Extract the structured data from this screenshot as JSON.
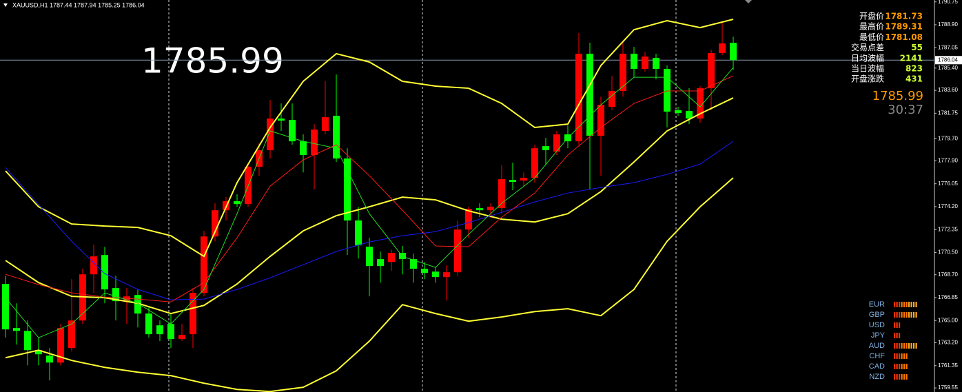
{
  "chart_data": {
    "type": "candlestick",
    "header": "XAUUSD,H1  1787.44 1787.94 1785.25 1786.04",
    "big_price": "1785.99",
    "up_color": "#ff0000",
    "down_color": "#00ff00",
    "xlim": [
      -0.5,
      84.25
    ],
    "ylim": [
      1759.22,
      1790.9
    ],
    "yticks": [
      1790.75,
      {
        "value": 1788.9,
        "label": "1788.90"
      },
      1787.05,
      {
        "value": 1785.4,
        "label": "1785.40"
      },
      {
        "value": 1783.6,
        "label": "1783.60"
      },
      1781.75,
      {
        "value": 1779.7,
        "label": "1779.70"
      },
      {
        "value": 1777.9,
        "label": "1777.90"
      },
      1776.05,
      {
        "value": 1774.2,
        "label": "1774.20"
      },
      1772.35,
      {
        "value": 1770.5,
        "label": "1770.50"
      },
      {
        "value": 1768.7,
        "label": "1768.70"
      },
      1766.85,
      {
        "value": 1765,
        "label": "1765.00"
      },
      {
        "value": 1763.2,
        "label": "1763.20"
      },
      1761.35,
      1759.55
    ],
    "current_price": 1786.04,
    "open": [
      1767.95,
      1764.39,
      1764.16,
      1762.6,
      1762.16,
      1761.6,
      1762.77,
      1765.0,
      1768.73,
      1770.29,
      1767.62,
      1766.56,
      1767.06,
      1765.56,
      1764.61,
      1764.72,
      1763.5,
      1763.89,
      1767.23,
      1771.79,
      1773.91,
      1774.64,
      1774.41,
      1777.42,
      1778.76,
      1781.32,
      1781.21,
      1779.48,
      1778.37,
      1780.32,
      1781.54,
      1778.09,
      1773.08,
      1770.96,
      1769.96,
      1769.73,
      1770.46,
      1769.96,
      1769.18,
      1768.95,
      1768.51,
      1768.9,
      1772.35,
      1774.08,
      1773.91,
      1774.08,
      1776.36,
      1776.31,
      1776.53,
      1779.09,
      1778.65,
      1780.04,
      1779.48,
      1786.56,
      1779.93,
      1782.27,
      1783.55,
      1786.56,
      1785.33,
      1786.22,
      1785.33,
      1781.99,
      1781.93,
      1781.32,
      1783.77,
      1786.61,
      1787.44
    ],
    "high": [
      1768.62,
      1766.39,
      1765.0,
      1763.61,
      1762.77,
      1764.72,
      1768.34,
      1769.18,
      1771.13,
      1770.96,
      1768.62,
      1767.62,
      1767.51,
      1766.11,
      1765.0,
      1765.56,
      1764.72,
      1767.62,
      1772.24,
      1774.47,
      1774.97,
      1775.19,
      1777.64,
      1779.31,
      1782.82,
      1782.54,
      1782.54,
      1780.04,
      1780.87,
      1784.33,
      1784.88,
      1778.92,
      1774.19,
      1771.68,
      1770.57,
      1770.74,
      1771.02,
      1770.4,
      1769.73,
      1769.29,
      1769.46,
      1773.08,
      1774.19,
      1774.47,
      1774.47,
      1777.53,
      1777.75,
      1776.97,
      1779.2,
      1779.76,
      1780.32,
      1780.76,
      1788.23,
      1787.45,
      1783.1,
      1784.77,
      1787.56,
      1787.11,
      1786.72,
      1786.56,
      1785.61,
      1782.27,
      1783.77,
      1783.94,
      1786.89,
      1789.06,
      1787.94
    ],
    "low": [
      1763.61,
      1763.05,
      1761.38,
      1761.38,
      1760.15,
      1761.38,
      1762.49,
      1764.72,
      1767.23,
      1766.39,
      1765.0,
      1764.72,
      1764.44,
      1763.61,
      1763.33,
      1762.77,
      1763.33,
      1762.77,
      1766.95,
      1771.4,
      1773.08,
      1774.19,
      1774.19,
      1776.7,
      1778.09,
      1780.32,
      1779.2,
      1776.97,
      1775.58,
      1780.04,
      1777.81,
      1770.29,
      1770.01,
      1766.95,
      1768.06,
      1769.01,
      1768.73,
      1768.06,
      1768.34,
      1768.06,
      1766.61,
      1768.62,
      1771.68,
      1773.35,
      1773.3,
      1773.63,
      1775.53,
      1775.86,
      1776.14,
      1777.53,
      1778.37,
      1778.92,
      1779.2,
      1775.58,
      1776.7,
      1781.99,
      1783.1,
      1784.66,
      1785.11,
      1784.49,
      1780.6,
      1781.54,
      1780.87,
      1780.99,
      1781.99,
      1786.44,
      1785.25
    ],
    "close": [
      1764.28,
      1764.16,
      1762.6,
      1762.27,
      1761.6,
      1764.39,
      1765.0,
      1768.73,
      1770.18,
      1767.51,
      1766.56,
      1766.95,
      1765.56,
      1763.89,
      1763.89,
      1763.5,
      1763.83,
      1767.23,
      1771.79,
      1773.91,
      1774.64,
      1774.41,
      1777.42,
      1778.76,
      1781.32,
      1781.15,
      1779.48,
      1778.37,
      1780.43,
      1781.43,
      1778.09,
      1773.08,
      1771.07,
      1769.4,
      1769.4,
      1770.46,
      1769.96,
      1769.18,
      1768.84,
      1768.51,
      1768.9,
      1772.35,
      1774.02,
      1773.91,
      1774.19,
      1776.42,
      1776.2,
      1776.53,
      1778.92,
      1778.76,
      1780.04,
      1779.48,
      1786.56,
      1779.93,
      1782.43,
      1783.55,
      1786.56,
      1785.33,
      1786.33,
      1785.33,
      1781.88,
      1781.77,
      1781.32,
      1783.77,
      1786.61,
      1787.39,
      1786.04
    ],
    "line_x": [
      0,
      3,
      6,
      9,
      12,
      15,
      18,
      21,
      24,
      27,
      30,
      33,
      36,
      39,
      42,
      45,
      48,
      51,
      54,
      57,
      60,
      63,
      66
    ],
    "lines": [
      {
        "color": "#ffff33",
        "width": 2,
        "values": [
          1777.09,
          1774.19,
          1772.8,
          1772.63,
          1772.52,
          1771.85,
          1770.18,
          1776.14,
          1780.6,
          1784.33,
          1786.56,
          1785.89,
          1784.33,
          1783.94,
          1783.77,
          1782.54,
          1780.6,
          1780.87,
          1785.61,
          1788.5,
          1789.23,
          1788.67,
          1789.34
        ]
      },
      {
        "color": "#ffff33",
        "width": 2,
        "values": [
          1769.85,
          1768.06,
          1766.95,
          1766.84,
          1766.39,
          1765.56,
          1766.22,
          1767.95,
          1770.18,
          1772.24,
          1773.47,
          1774.19,
          1774.97,
          1774.75,
          1773.86,
          1773.19,
          1772.96,
          1773.63,
          1775.42,
          1777.81,
          1780.32,
          1781.71,
          1782.99
        ]
      },
      {
        "color": "#ffff33",
        "width": 2,
        "values": [
          1761.99,
          1762.6,
          1761.77,
          1761.21,
          1760.82,
          1760.54,
          1759.93,
          1759.43,
          1759.26,
          1759.6,
          1760.93,
          1763.33,
          1766.28,
          1765.56,
          1764.94,
          1765.28,
          1765.72,
          1765.95,
          1765.39,
          1767.51,
          1771.4,
          1774.19,
          1776.53
        ]
      },
      {
        "color": "#1a1aff",
        "width": 1,
        "values": [
          1777.36,
          1774.36,
          1771.4,
          1768.79,
          1767.51,
          1766.67,
          1766.73,
          1767.51,
          1768.45,
          1769.51,
          1770.57,
          1771.35,
          1771.85,
          1772.18,
          1772.91,
          1773.74,
          1774.58,
          1775.3,
          1775.75,
          1776.14,
          1776.81,
          1777.64,
          1779.48
        ]
      },
      {
        "color": "#ff1a1a",
        "width": 1,
        "values": [
          1768.73,
          1767.9,
          1767.23,
          1766.89,
          1766.73,
          1766.5,
          1768.06,
          1771.68,
          1775.86,
          1777.98,
          1779.2,
          1776.7,
          1773.91,
          1771.02,
          1770.96,
          1773.35,
          1775.3,
          1778.37,
          1780.6,
          1782.54,
          1783.55,
          1783.55,
          1784.77
        ]
      },
      {
        "color": "#22dd22",
        "width": 1,
        "values": [
          1766.84,
          1763.61,
          1764.72,
          1767.23,
          1766.39,
          1764.72,
          1767.51,
          1773.63,
          1780.32,
          1779.48,
          1778.92,
          1773.63,
          1770.18,
          1769.29,
          1771.96,
          1774.47,
          1776.53,
          1779.76,
          1782.43,
          1784.66,
          1784.66,
          1782.27,
          1785.44
        ]
      }
    ]
  },
  "info_panel": {
    "rows": [
      {
        "label": "开盘价",
        "value": "1781.73",
        "color": "#ff9900"
      },
      {
        "label": "最高价",
        "value": "1789.31",
        "color": "#ff9900"
      },
      {
        "label": "最低价",
        "value": "1781.08",
        "color": "#ff9900"
      },
      {
        "label": "交易点差",
        "value": "55",
        "color": "#ccff33"
      },
      {
        "label": "日均波幅",
        "value": "2141",
        "color": "#ccff33"
      },
      {
        "label": "当日波幅",
        "value": "823",
        "color": "#ccff33"
      },
      {
        "label": "开盘涨跌",
        "value": "431",
        "color": "#ccff33"
      }
    ],
    "bid": "1785.99",
    "timer": "30:37"
  },
  "currency_strength": [
    {
      "name": "EUR",
      "value": 10
    },
    {
      "name": "GBP",
      "value": 10
    },
    {
      "name": "USD",
      "value": 3
    },
    {
      "name": "JPY",
      "value": 3
    },
    {
      "name": "AUD",
      "value": 10
    },
    {
      "name": "CHF",
      "value": 6
    },
    {
      "name": "CAD",
      "value": 6
    },
    {
      "name": "NZD",
      "value": 6
    }
  ]
}
